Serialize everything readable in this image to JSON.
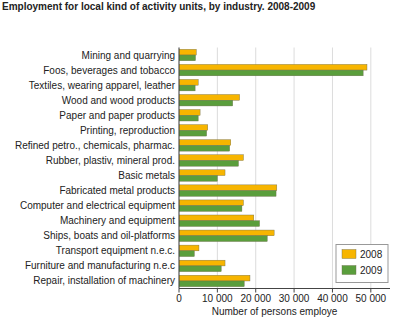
{
  "chart_data": {
    "type": "bar",
    "orientation": "horizontal",
    "title": "Employment for local kind of activity units, by industry. 2008-2009",
    "x_label": "Number of persons employe",
    "categories": [
      "Mining and quarrying",
      "Foos, beverages and tobacco",
      "Textiles, wearing apparel, leather",
      "Wood and wood products",
      "Paper and paper products",
      "Printing, reproduction",
      "Refined petro., chemicals, pharmac.",
      "Rubber, plastiv, mineral prod.",
      "Basic metals",
      "Fabricated metal products",
      "Computer and electrical equipment",
      "Machinery and equipment",
      "Ships, boats and oil-platforms",
      "Transport equipment n.e.c.",
      "Furniture and manufacturing n.e.c",
      "Repair, installation of machinery"
    ],
    "series": [
      {
        "name": "2008",
        "color": "#f7b500",
        "values": [
          4500,
          49000,
          5000,
          15800,
          5500,
          7500,
          13500,
          16800,
          12000,
          25500,
          16800,
          19500,
          24800,
          5200,
          12000,
          18500
        ]
      },
      {
        "name": "2009",
        "color": "#5a9e3c",
        "values": [
          4300,
          48000,
          4200,
          14000,
          5000,
          7200,
          13200,
          15500,
          10000,
          25300,
          16400,
          21000,
          23000,
          4000,
          11000,
          17000
        ]
      }
    ],
    "xlim": [
      0,
      55000
    ],
    "xticks": [
      0,
      {
        "value": 10000,
        "label": "10 000"
      },
      {
        "value": 20000,
        "label": "20 000"
      },
      {
        "value": 30000,
        "label": "30 000"
      },
      {
        "value": 40000,
        "label": "40 000"
      },
      {
        "value": 50000,
        "label": "50 000"
      }
    ],
    "grid": true,
    "legend": "bottom-right"
  }
}
